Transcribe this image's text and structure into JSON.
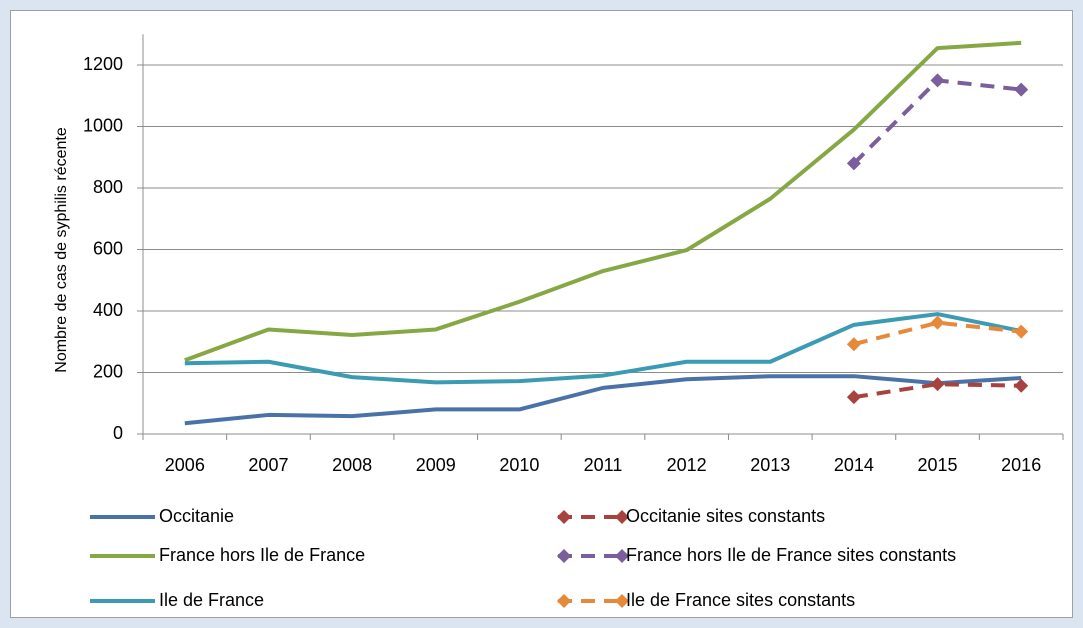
{
  "chart_data": {
    "type": "line",
    "y_label": "Nombre de cas de syphilis  récente",
    "categories": [
      "2006",
      "2007",
      "2008",
      "2009",
      "2010",
      "2011",
      "2012",
      "2013",
      "2014",
      "2015",
      "2016"
    ],
    "ylim": [
      0,
      1300
    ],
    "yticks": [
      0,
      200,
      400,
      600,
      800,
      1000,
      1200
    ],
    "grid": true,
    "series": [
      {
        "name": "Occitanie",
        "color": "#4a72a8",
        "dashed": false,
        "marker": "none",
        "values": [
          35,
          62,
          58,
          80,
          80,
          150,
          178,
          188,
          188,
          165,
          182
        ]
      },
      {
        "name": "Occitanie sites constants",
        "color": "#a8423f",
        "dashed": true,
        "marker": "diamond",
        "values": [
          null,
          null,
          null,
          null,
          null,
          null,
          null,
          null,
          120,
          162,
          157
        ]
      },
      {
        "name": "France hors Ile de France",
        "color": "#86a844",
        "dashed": false,
        "marker": "none",
        "values": [
          240,
          340,
          322,
          340,
          430,
          530,
          598,
          765,
          990,
          1255,
          1272
        ]
      },
      {
        "name": "France hors Ile de France sites constants",
        "color": "#7b5e9c",
        "dashed": true,
        "marker": "diamond",
        "values": [
          null,
          null,
          null,
          null,
          null,
          null,
          null,
          null,
          880,
          1150,
          1120
        ]
      },
      {
        "name": " Ile de France",
        "color": "#3b9bb3",
        "dashed": false,
        "marker": "none",
        "values": [
          230,
          235,
          185,
          168,
          172,
          190,
          235,
          235,
          355,
          390,
          335
        ]
      },
      {
        "name": "Ile de France sites constants",
        "color": "#e7893a",
        "dashed": true,
        "marker": "diamond",
        "values": [
          null,
          null,
          null,
          null,
          null,
          null,
          null,
          null,
          292,
          362,
          333
        ]
      }
    ]
  }
}
